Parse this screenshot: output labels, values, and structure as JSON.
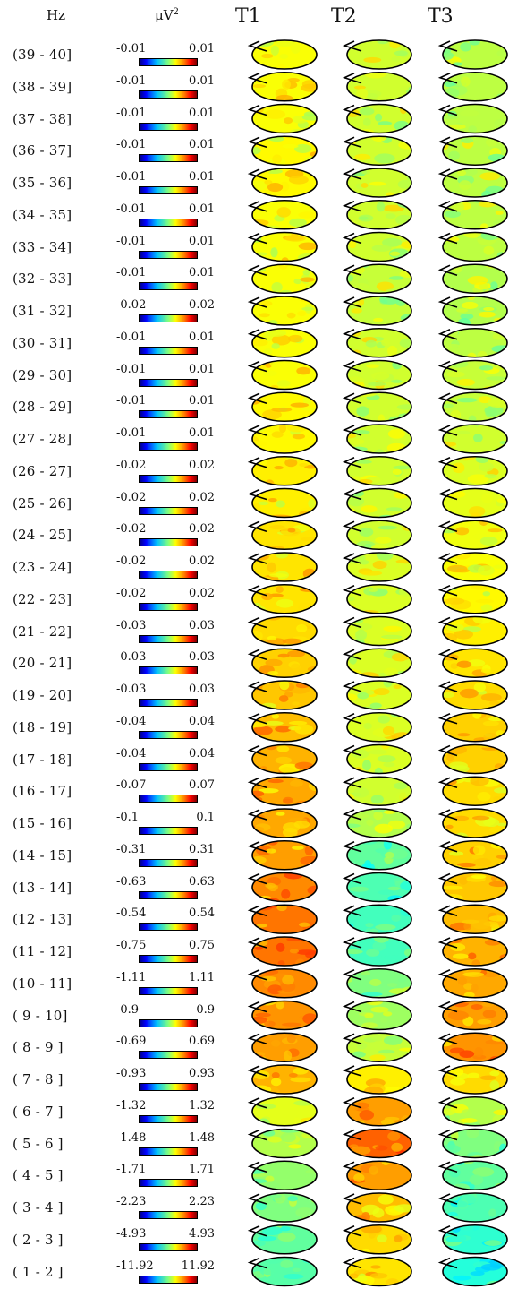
{
  "headers": {
    "hz": "Hz",
    "unit": "μV",
    "unit_sup": "2",
    "t1": "T1",
    "t2": "T2",
    "t3": "T3"
  },
  "colormap": "jet",
  "rows": [
    {
      "hz": "(39 - 40]",
      "min": "-0.01",
      "max": "0.01",
      "t1": 0.62,
      "t2": 0.58,
      "t3": 0.56
    },
    {
      "hz": "(38 - 39]",
      "min": "-0.01",
      "max": "0.01",
      "t1": 0.62,
      "t2": 0.58,
      "t3": 0.56
    },
    {
      "hz": "(37 - 38]",
      "min": "-0.01",
      "max": "0.01",
      "t1": 0.62,
      "t2": 0.58,
      "t3": 0.56
    },
    {
      "hz": "(36 - 37]",
      "min": "-0.01",
      "max": "0.01",
      "t1": 0.63,
      "t2": 0.58,
      "t3": 0.56
    },
    {
      "hz": "(35 - 36]",
      "min": "-0.01",
      "max": "0.01",
      "t1": 0.63,
      "t2": 0.58,
      "t3": 0.56
    },
    {
      "hz": "(34 - 35]",
      "min": "-0.01",
      "max": "0.01",
      "t1": 0.62,
      "t2": 0.58,
      "t3": 0.56
    },
    {
      "hz": "(33 - 34]",
      "min": "-0.01",
      "max": "0.01",
      "t1": 0.62,
      "t2": 0.58,
      "t3": 0.56
    },
    {
      "hz": "(32 - 33]",
      "min": "-0.01",
      "max": "0.01",
      "t1": 0.62,
      "t2": 0.57,
      "t3": 0.55
    },
    {
      "hz": "(31 - 32]",
      "min": "-0.02",
      "max": "0.02",
      "t1": 0.62,
      "t2": 0.57,
      "t3": 0.55
    },
    {
      "hz": "(30 - 31]",
      "min": "-0.01",
      "max": "0.01",
      "t1": 0.62,
      "t2": 0.58,
      "t3": 0.56
    },
    {
      "hz": "(29 - 30]",
      "min": "-0.01",
      "max": "0.01",
      "t1": 0.62,
      "t2": 0.58,
      "t3": 0.57
    },
    {
      "hz": "(28 - 29]",
      "min": "-0.01",
      "max": "0.01",
      "t1": 0.63,
      "t2": 0.58,
      "t3": 0.57
    },
    {
      "hz": "(27 - 28]",
      "min": "-0.01",
      "max": "0.01",
      "t1": 0.63,
      "t2": 0.58,
      "t3": 0.58
    },
    {
      "hz": "(26 - 27]",
      "min": "-0.02",
      "max": "0.02",
      "t1": 0.64,
      "t2": 0.58,
      "t3": 0.59
    },
    {
      "hz": "(25 - 26]",
      "min": "-0.02",
      "max": "0.02",
      "t1": 0.64,
      "t2": 0.58,
      "t3": 0.6
    },
    {
      "hz": "(24 - 25]",
      "min": "-0.02",
      "max": "0.02",
      "t1": 0.65,
      "t2": 0.58,
      "t3": 0.61
    },
    {
      "hz": "(23 - 24]",
      "min": "-0.02",
      "max": "0.02",
      "t1": 0.65,
      "t2": 0.59,
      "t3": 0.62
    },
    {
      "hz": "(22 - 23]",
      "min": "-0.02",
      "max": "0.02",
      "t1": 0.65,
      "t2": 0.59,
      "t3": 0.63
    },
    {
      "hz": "(21 - 22]",
      "min": "-0.03",
      "max": "0.03",
      "t1": 0.66,
      "t2": 0.59,
      "t3": 0.64
    },
    {
      "hz": "(20 - 21]",
      "min": "-0.03",
      "max": "0.03",
      "t1": 0.67,
      "t2": 0.59,
      "t3": 0.65
    },
    {
      "hz": "(19 - 20]",
      "min": "-0.03",
      "max": "0.03",
      "t1": 0.68,
      "t2": 0.59,
      "t3": 0.66
    },
    {
      "hz": "(18 - 19]",
      "min": "-0.04",
      "max": "0.04",
      "t1": 0.69,
      "t2": 0.59,
      "t3": 0.67
    },
    {
      "hz": "(17 - 18]",
      "min": "-0.04",
      "max": "0.04",
      "t1": 0.7,
      "t2": 0.59,
      "t3": 0.67
    },
    {
      "hz": "(16 - 17]",
      "min": "-0.07",
      "max": "0.07",
      "t1": 0.71,
      "t2": 0.58,
      "t3": 0.66
    },
    {
      "hz": "(15 - 16]",
      "min": "-0.1",
      "max": "0.1",
      "t1": 0.71,
      "t2": 0.55,
      "t3": 0.66
    },
    {
      "hz": "(14 - 15]",
      "min": "-0.31",
      "max": "0.31",
      "t1": 0.72,
      "t2": 0.47,
      "t3": 0.67
    },
    {
      "hz": "(13 - 14]",
      "min": "-0.63",
      "max": "0.63",
      "t1": 0.74,
      "t2": 0.45,
      "t3": 0.68
    },
    {
      "hz": "(12 - 13]",
      "min": "-0.54",
      "max": "0.54",
      "t1": 0.76,
      "t2": 0.44,
      "t3": 0.69
    },
    {
      "hz": "(11 - 12]",
      "min": "-0.75",
      "max": "0.75",
      "t1": 0.76,
      "t2": 0.44,
      "t3": 0.7
    },
    {
      "hz": "(10 - 11]",
      "min": "-1.11",
      "max": "1.11",
      "t1": 0.74,
      "t2": 0.5,
      "t3": 0.71
    },
    {
      "hz": "( 9 - 10]",
      "min": "-0.9",
      "max": "0.9",
      "t1": 0.73,
      "t2": 0.53,
      "t3": 0.72
    },
    {
      "hz": "( 8 - 9 ]",
      "min": "-0.69",
      "max": "0.69",
      "t1": 0.72,
      "t2": 0.57,
      "t3": 0.73
    },
    {
      "hz": "( 7 - 8 ]",
      "min": "-0.93",
      "max": "0.93",
      "t1": 0.7,
      "t2": 0.64,
      "t3": 0.66
    },
    {
      "hz": "( 6 - 7 ]",
      "min": "-1.32",
      "max": "1.32",
      "t1": 0.6,
      "t2": 0.72,
      "t3": 0.55
    },
    {
      "hz": "( 5 - 6 ]",
      "min": "-1.48",
      "max": "1.48",
      "t1": 0.55,
      "t2": 0.78,
      "t3": 0.5
    },
    {
      "hz": "( 4 - 5 ]",
      "min": "-1.71",
      "max": "1.71",
      "t1": 0.52,
      "t2": 0.72,
      "t3": 0.47
    },
    {
      "hz": "( 3 - 4 ]",
      "min": "-2.23",
      "max": "2.23",
      "t1": 0.5,
      "t2": 0.69,
      "t3": 0.45
    },
    {
      "hz": "( 2 - 3 ]",
      "min": "-4.93",
      "max": "4.93",
      "t1": 0.47,
      "t2": 0.66,
      "t3": 0.42
    },
    {
      "hz": "( 1 - 2 ]",
      "min": "-11.92",
      "max": "11.92",
      "t1": 0.46,
      "t2": 0.65,
      "t3": 0.41
    }
  ]
}
